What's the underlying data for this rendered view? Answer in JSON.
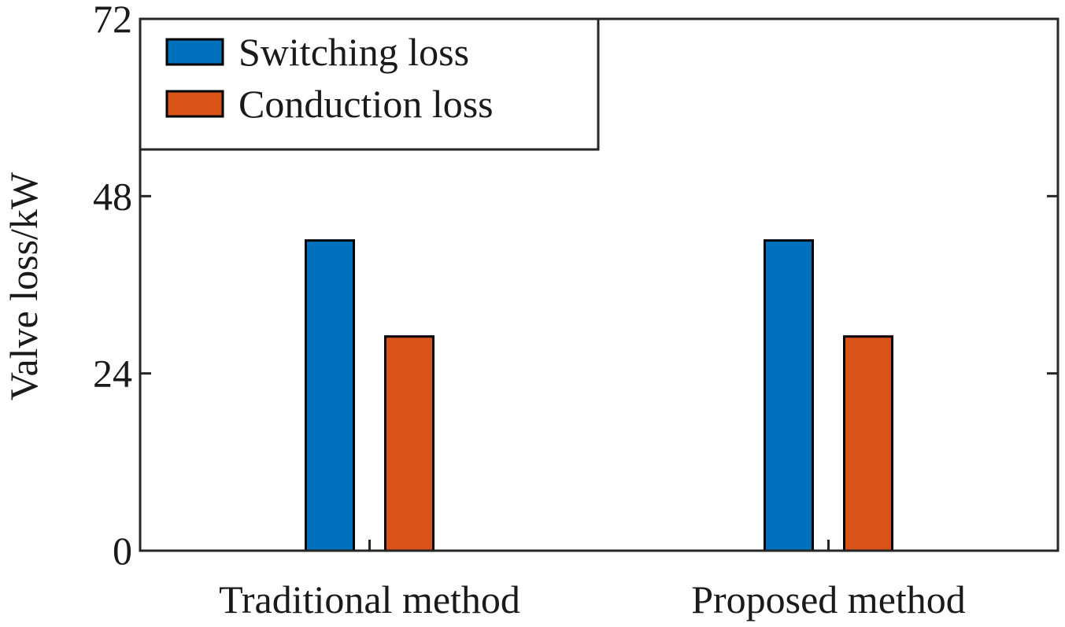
{
  "chart_data": {
    "type": "bar",
    "title": "",
    "xlabel": "",
    "ylabel": "Valve loss/kW",
    "categories": [
      "Traditional method",
      "Proposed method"
    ],
    "series": [
      {
        "name": "Switching loss",
        "values": [
          42,
          42
        ],
        "color": "#0072BD"
      },
      {
        "name": "Conduction loss",
        "values": [
          29,
          29
        ],
        "color": "#D95319"
      }
    ],
    "ylim": [
      0,
      72
    ],
    "yticks": [
      0,
      24,
      48,
      72
    ],
    "grid": false,
    "legend_position": "top-left"
  }
}
